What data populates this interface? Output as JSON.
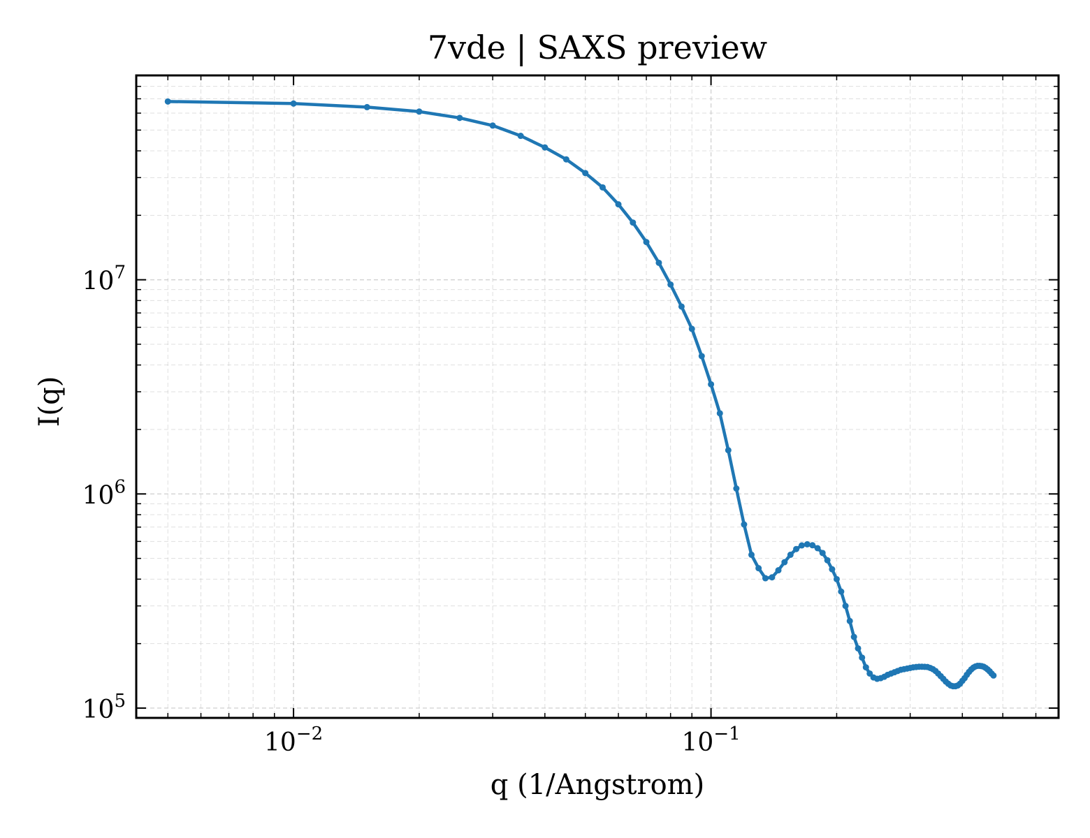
{
  "chart_data": {
    "type": "line",
    "title": "7vde | SAXS preview",
    "xlabel": "q (1/Angstrom)",
    "ylabel": "I(q)",
    "xscale": "log",
    "yscale": "log",
    "xlim": [
      0.0042,
      0.68
    ],
    "ylim": [
      90000,
      90000000
    ],
    "grid": true,
    "x_ticks": [
      {
        "value": 0.01,
        "base": "10",
        "exp": "−2"
      },
      {
        "value": 0.1,
        "base": "10",
        "exp": "−1"
      }
    ],
    "y_ticks": [
      {
        "value": 100000,
        "base": "10",
        "exp": "5"
      },
      {
        "value": 1000000,
        "base": "10",
        "exp": "6"
      },
      {
        "value": 10000000,
        "base": "10",
        "exp": "7"
      }
    ],
    "series": [
      {
        "color": "#1f77b4",
        "marker": "circle",
        "points": [
          [
            0.005,
            68000000
          ],
          [
            0.01,
            66500000
          ],
          [
            0.015,
            64000000
          ],
          [
            0.02,
            61000000
          ],
          [
            0.025,
            57000000
          ],
          [
            0.03,
            52500000
          ],
          [
            0.035,
            47000000
          ],
          [
            0.04,
            41500000
          ],
          [
            0.045,
            36500000
          ],
          [
            0.05,
            31500000
          ],
          [
            0.055,
            27000000
          ],
          [
            0.06,
            22500000
          ],
          [
            0.065,
            18500000
          ],
          [
            0.07,
            15000000
          ],
          [
            0.075,
            12000000
          ],
          [
            0.08,
            9500000
          ],
          [
            0.085,
            7500000
          ],
          [
            0.09,
            5900000
          ],
          [
            0.095,
            4400000
          ],
          [
            0.1,
            3250000
          ],
          [
            0.105,
            2380000
          ],
          [
            0.11,
            1600000
          ],
          [
            0.115,
            1060000
          ],
          [
            0.12,
            720000
          ],
          [
            0.125,
            520000
          ],
          [
            0.13,
            450000
          ],
          [
            0.135,
            404000
          ],
          [
            0.14,
            408000
          ],
          [
            0.145,
            440000
          ],
          [
            0.15,
            480000
          ],
          [
            0.155,
            520000
          ],
          [
            0.16,
            553000
          ],
          [
            0.165,
            575000
          ],
          [
            0.17,
            582000
          ],
          [
            0.175,
            576000
          ],
          [
            0.18,
            558000
          ],
          [
            0.185,
            530000
          ],
          [
            0.19,
            490000
          ],
          [
            0.195,
            445000
          ],
          [
            0.2,
            400000
          ],
          [
            0.205,
            350000
          ],
          [
            0.21,
            300000
          ],
          [
            0.215,
            255000
          ],
          [
            0.22,
            215000
          ],
          [
            0.225,
            190000
          ],
          [
            0.23,
            172000
          ],
          [
            0.235,
            155000
          ],
          [
            0.24,
            145000
          ],
          [
            0.245,
            139000
          ],
          [
            0.25,
            137000
          ],
          [
            0.255,
            138000
          ],
          [
            0.26,
            140000
          ],
          [
            0.265,
            143000
          ],
          [
            0.27,
            145000
          ],
          [
            0.275,
            147000
          ],
          [
            0.28,
            149000
          ],
          [
            0.285,
            151000
          ],
          [
            0.29,
            152000
          ],
          [
            0.295,
            153000
          ],
          [
            0.3,
            154000
          ],
          [
            0.305,
            155000
          ],
          [
            0.31,
            155500
          ],
          [
            0.315,
            156000
          ],
          [
            0.32,
            156000
          ],
          [
            0.325,
            155800
          ],
          [
            0.33,
            155500
          ],
          [
            0.335,
            154000
          ],
          [
            0.34,
            152000
          ],
          [
            0.345,
            149000
          ],
          [
            0.35,
            145000
          ],
          [
            0.355,
            141000
          ],
          [
            0.36,
            137000
          ],
          [
            0.365,
            133000
          ],
          [
            0.37,
            130000
          ],
          [
            0.375,
            127500
          ],
          [
            0.38,
            126500
          ],
          [
            0.385,
            126500
          ],
          [
            0.39,
            127500
          ],
          [
            0.395,
            130000
          ],
          [
            0.4,
            134000
          ],
          [
            0.405,
            138000
          ],
          [
            0.41,
            143000
          ],
          [
            0.415,
            147500
          ],
          [
            0.42,
            151500
          ],
          [
            0.425,
            154500
          ],
          [
            0.43,
            156500
          ],
          [
            0.435,
            157500
          ],
          [
            0.44,
            157500
          ],
          [
            0.445,
            157000
          ],
          [
            0.45,
            156000
          ],
          [
            0.455,
            154000
          ],
          [
            0.46,
            151500
          ],
          [
            0.465,
            148500
          ],
          [
            0.47,
            145000
          ],
          [
            0.475,
            142000
          ]
        ]
      }
    ]
  }
}
